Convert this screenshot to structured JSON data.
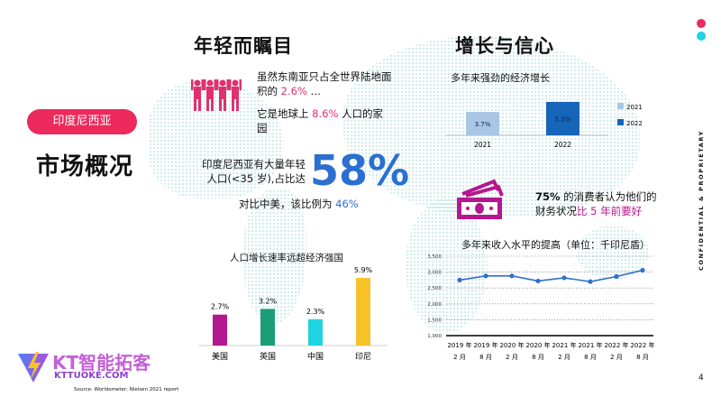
{
  "left": {
    "badge": "印度尼西亚",
    "title": "市场概况"
  },
  "young": {
    "title": "年轻而瞩目",
    "land_text": "虽然东南亚只占全世界陆地面积的",
    "land_value": "2.6%",
    "land_suffix": " …",
    "pop_text": "它是地球上",
    "pop_value": "8.6%",
    "pop_suffix": " 人口的家园",
    "youth_text_1": "印度尼西亚有大量年轻",
    "youth_text_2": "人口(<35 岁),占比达",
    "youth_value": "58%",
    "compare_text": "对比中美，该比例为",
    "compare_value": "46%"
  },
  "growth": {
    "title": "增长与信心",
    "subtitle": "多年来强劲的经济增长",
    "consumer_bold": "75%",
    "consumer_text_1": " 的消费者认为他们的",
    "consumer_text_2": "财务状况",
    "consumer_highlight": "比 5 年前要好"
  },
  "chart_data": [
    {
      "type": "bar",
      "title": "人口增长速率远超经济强国",
      "categories": [
        "美国",
        "英国",
        "中国",
        "印尼"
      ],
      "values": [
        2.7,
        3.2,
        2.3,
        5.9
      ],
      "labels": [
        "2.7%",
        "3.2%",
        "2.3%",
        "5.9%"
      ],
      "colors": [
        "#b5178f",
        "#1a9e77",
        "#1fd3e0",
        "#f7c12a"
      ]
    },
    {
      "type": "bar",
      "title": "多年来强劲的经济增长",
      "categories": [
        "2021",
        "2022"
      ],
      "values": [
        3.7,
        5.3
      ],
      "labels": [
        "3.7%",
        "5.3%"
      ],
      "legend": [
        "2021",
        "2022"
      ],
      "colors": [
        "#a9c6e6",
        "#1565b8"
      ]
    },
    {
      "type": "line",
      "title": "多年来收入水平的提高（单位：千印尼盾）",
      "x": [
        "2019 年|2 月",
        "2019 年|8 月",
        "2020 年|2 月",
        "2020 年|8 月",
        "2021 年|2 月",
        "2021 年|8 月",
        "2022 年|2 月",
        "2022 年|8 月"
      ],
      "values": [
        2750,
        2880,
        2880,
        2720,
        2820,
        2700,
        2860,
        3060
      ],
      "yticks": [
        "1,000",
        "1,500",
        "2,000",
        "2,500",
        "3,000",
        "3,500"
      ],
      "ylim": [
        1000,
        3500
      ],
      "color": "#2f6fd0"
    }
  ],
  "footer": {
    "logo_text": "KT智能拓客",
    "logo_domain": "KTTUOKE.COM",
    "source": "Source:  Worldometer; Nielsen 2021 report",
    "page": "4",
    "confidential": "CONFIDENTIAL & PROPRIETARY"
  }
}
